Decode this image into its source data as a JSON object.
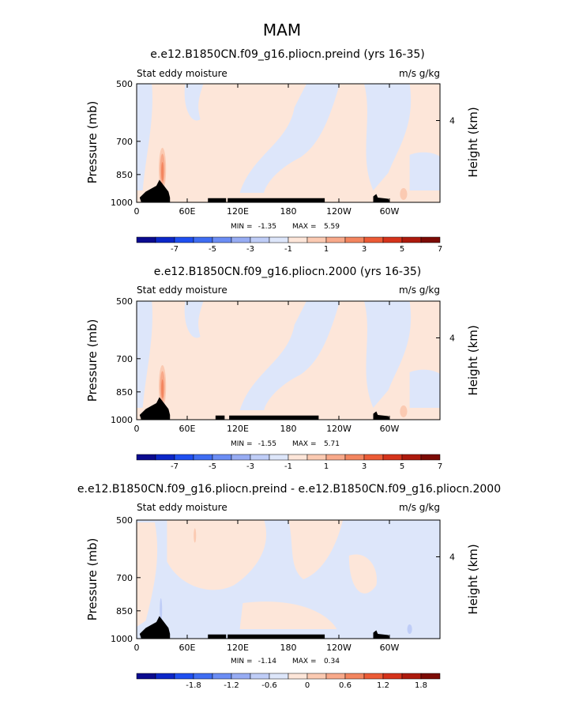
{
  "figure": {
    "title": "MAM"
  },
  "colors": {
    "palette": [
      "#0b0b8f",
      "#0c27c8",
      "#1f4ff0",
      "#3f6df2",
      "#6b8df4",
      "#97acf3",
      "#bfcdf7",
      "#dde6fa",
      "#fde6d9",
      "#fbcab2",
      "#f8a98a",
      "#f3855f",
      "#ec5b36",
      "#d5331b",
      "#ad1a0d",
      "#7c0b05"
    ],
    "land": "#000000"
  },
  "chart_data": [
    {
      "type": "heatmap",
      "title": "e.e12.B1850CN.f09_g16.pliocn.preind (yrs 16-35)",
      "left_label": "Stat eddy moisture",
      "right_label": "m/s g/kg",
      "xticks": [
        "0",
        "60E",
        "120E",
        "180",
        "120W",
        "60W"
      ],
      "xtick_values": [
        0,
        60,
        120,
        180,
        240,
        300
      ],
      "yticks": [
        "500",
        "700",
        "850",
        "1000"
      ],
      "ytick_values": [
        500,
        700,
        850,
        1000
      ],
      "ylabel": "Pressure (mb)",
      "y2label": "Height (km)",
      "y2ticks": [
        "4"
      ],
      "ylim": [
        1000,
        500
      ],
      "xlim": [
        0,
        360
      ],
      "min_label": "MIN =",
      "min_value": "-1.35",
      "max_label": "MAX =",
      "max_value": "5.59",
      "colorbar_labels": [
        "-7",
        "-5",
        "-3",
        "-1",
        "1",
        "3",
        "5",
        "7"
      ]
    },
    {
      "type": "heatmap",
      "title": "e.e12.B1850CN.f09_g16.pliocn.2000 (yrs 16-35)",
      "left_label": "Stat eddy moisture",
      "right_label": "m/s g/kg",
      "xticks": [
        "0",
        "60E",
        "120E",
        "180",
        "120W",
        "60W"
      ],
      "xtick_values": [
        0,
        60,
        120,
        180,
        240,
        300
      ],
      "yticks": [
        "500",
        "700",
        "850",
        "1000"
      ],
      "ytick_values": [
        500,
        700,
        850,
        1000
      ],
      "ylabel": "Pressure (mb)",
      "y2label": "Height (km)",
      "y2ticks": [
        "4"
      ],
      "ylim": [
        1000,
        500
      ],
      "xlim": [
        0,
        360
      ],
      "min_label": "MIN =",
      "min_value": "-1.55",
      "max_label": "MAX =",
      "max_value": "5.71",
      "colorbar_labels": [
        "-7",
        "-5",
        "-3",
        "-1",
        "1",
        "3",
        "5",
        "7"
      ]
    },
    {
      "type": "heatmap",
      "title": "e.e12.B1850CN.f09_g16.pliocn.preind - e.e12.B1850CN.f09_g16.pliocn.2000",
      "left_label": "Stat eddy moisture",
      "right_label": "m/s g/kg",
      "xticks": [
        "0",
        "60E",
        "120E",
        "180",
        "120W",
        "60W"
      ],
      "xtick_values": [
        0,
        60,
        120,
        180,
        240,
        300
      ],
      "yticks": [
        "500",
        "700",
        "850",
        "1000"
      ],
      "ytick_values": [
        500,
        700,
        850,
        1000
      ],
      "ylabel": "Pressure (mb)",
      "y2label": "Height (km)",
      "y2ticks": [
        "4"
      ],
      "ylim": [
        1000,
        500
      ],
      "xlim": [
        0,
        360
      ],
      "min_label": "MIN =",
      "min_value": "-1.14",
      "max_label": "MAX =",
      "max_value": "0.34",
      "colorbar_labels": [
        "-1.8",
        "-1.2",
        "-0.6",
        "0",
        "0.6",
        "1.2",
        "1.8"
      ]
    }
  ]
}
